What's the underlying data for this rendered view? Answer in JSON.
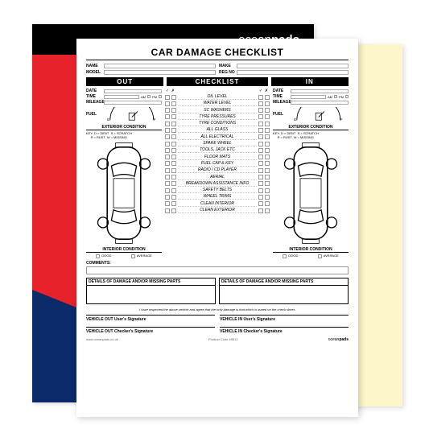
{
  "brand": {
    "light": "ocean",
    "bold": "pads"
  },
  "title": "CAR DAMAGE CHECKLIST",
  "header_fields": {
    "name": "NAME",
    "make": "MAKE",
    "model": "MODEL",
    "regno": "REG NO"
  },
  "bars": {
    "out": "OUT",
    "checklist": "CHECKLIST",
    "in": "IN"
  },
  "tick_header": {
    "check1": "✓",
    "cross1": "✗",
    "check2": "✓",
    "cross2": "✗"
  },
  "side": {
    "date": "DATE",
    "time": "TIME",
    "mileage": "MILEAGE",
    "fuel": "FUEL",
    "am": "AM",
    "pm": "PM",
    "e": "E",
    "f": "F",
    "ext_title": "EXTERIOR CONDITION",
    "key_label": "KEY:",
    "key1": "D = DENT",
    "key2": "S = SCRATCH",
    "key3": "R = RUST",
    "key4": "M = MISSING",
    "int_title": "INTERIOR CONDITION",
    "good": "GOOD",
    "average": "AVERAGE"
  },
  "checklist": [
    "OIL LEVEL",
    "WATER LEVEL",
    "SC WASHERS",
    "TYRE PRESSURES",
    "TYRE CONDITIONS",
    "ALL GLASS",
    "ALL ELECTRICAL",
    "SPARE WHEEL",
    "TOOLS, JACK ETC",
    "FLOOR MATS",
    "FUEL CAP & KEY",
    "RADIO / CD PLAYER",
    "AERIAL",
    "BREAKDOWN ASSISTANCE INFO",
    "SAFETY BELTS",
    "WHEEL TRIMS",
    "CLEAN INTERIOR",
    "CLEAN EXTERIOR"
  ],
  "comments_label": "COMMENTS:",
  "damage_header": "DETAILS OF DAMAGE AND/OR MISSING PARTS",
  "consent": "I have inspected the above vehicle and agree that the only damage is that which is stated on the check sheet.",
  "sigs": {
    "out_user": "VEHICLE OUT User's Signature",
    "out_checker": "VEHICLE OUT Checker's Signature",
    "in_user": "VEHICLE IN User's Signature",
    "in_checker": "VEHICLE IN Checker's Signature"
  },
  "footer": {
    "url": "www.oceanpads.co.uk",
    "code": "Product Code 69812"
  },
  "colors": {
    "red": "#e8222a",
    "blue": "#0a2a6a",
    "black": "#000000",
    "yellow": "#fdf6c8"
  }
}
